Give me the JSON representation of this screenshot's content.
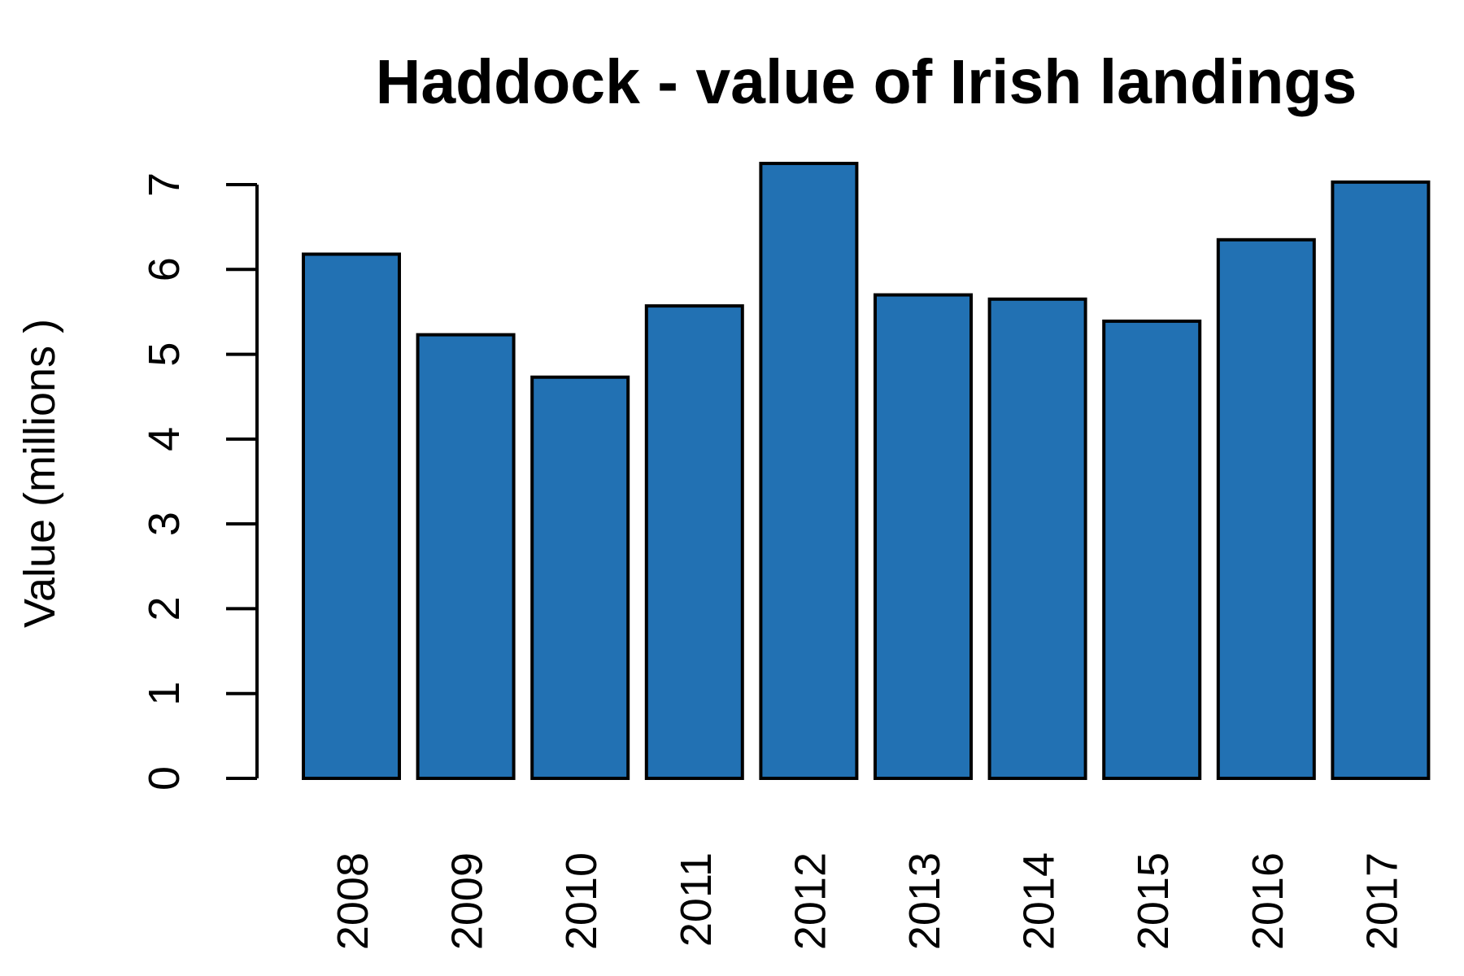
{
  "chart_data": {
    "type": "bar",
    "title": "Haddock - value of Irish landings",
    "xlabel": "",
    "ylabel": "Value (millions )",
    "categories": [
      "2008",
      "2009",
      "2010",
      "2011",
      "2012",
      "2013",
      "2014",
      "2015",
      "2016",
      "2017"
    ],
    "values": [
      6.18,
      5.23,
      4.73,
      5.57,
      7.25,
      5.7,
      5.65,
      5.39,
      6.35,
      7.03
    ],
    "ylim": [
      0,
      7
    ],
    "yticks": [
      "0",
      "1",
      "2",
      "3",
      "4",
      "5",
      "6",
      "7"
    ],
    "bar_color": "#2271b3",
    "edge_color": "#000000",
    "grid": false,
    "legend": "none"
  }
}
